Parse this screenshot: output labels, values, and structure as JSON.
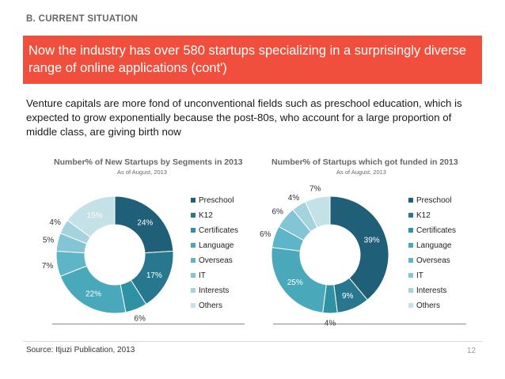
{
  "section": "B. CURRENT SITUATION",
  "headline": "Now the industry has over 580 startups specializing in a surprisingly diverse range of online applications (cont')",
  "intro": "Venture capitals are more fond of unconventional fields such as preschool education, which is expected to grow exponentially because the post-80s, who account for a large proportion of middle class, are giving birth now",
  "source": "Source: Itjuzi Publication, 2013",
  "page_number": "12",
  "colors": [
    "#1f5f78",
    "#27788f",
    "#2e91a4",
    "#4aa8bb",
    "#5fb5c8",
    "#83c5d4",
    "#a4d3dd",
    "#c5e1e8"
  ],
  "chart_data": [
    {
      "type": "pie",
      "donut": true,
      "title": "Number% of New Startups by Segments in 2013",
      "subtitle": "As of August, 2013",
      "categories": [
        "Preschool",
        "K12",
        "Certificates",
        "Language",
        "Overseas",
        "IT",
        "Interests",
        "Others"
      ],
      "values": [
        24,
        17,
        6,
        22,
        7,
        5,
        4,
        15
      ],
      "labels": [
        "24%",
        "17%",
        "6%",
        "22%",
        "7%",
        "5%",
        "4%",
        "15%"
      ],
      "legend": "right"
    },
    {
      "type": "pie",
      "donut": true,
      "title": "Number% of Startups which got funded in 2013",
      "subtitle": "As of August, 2013",
      "categories": [
        "Preschool",
        "K12",
        "Certificates",
        "Language",
        "Overseas",
        "IT",
        "Interests",
        "Others"
      ],
      "values": [
        39,
        9,
        4,
        25,
        6,
        6,
        4,
        7
      ],
      "labels": [
        "39%",
        "9%",
        "4%",
        "25%",
        "6%",
        "6%",
        "4%",
        "7%"
      ],
      "legend": "right"
    }
  ]
}
